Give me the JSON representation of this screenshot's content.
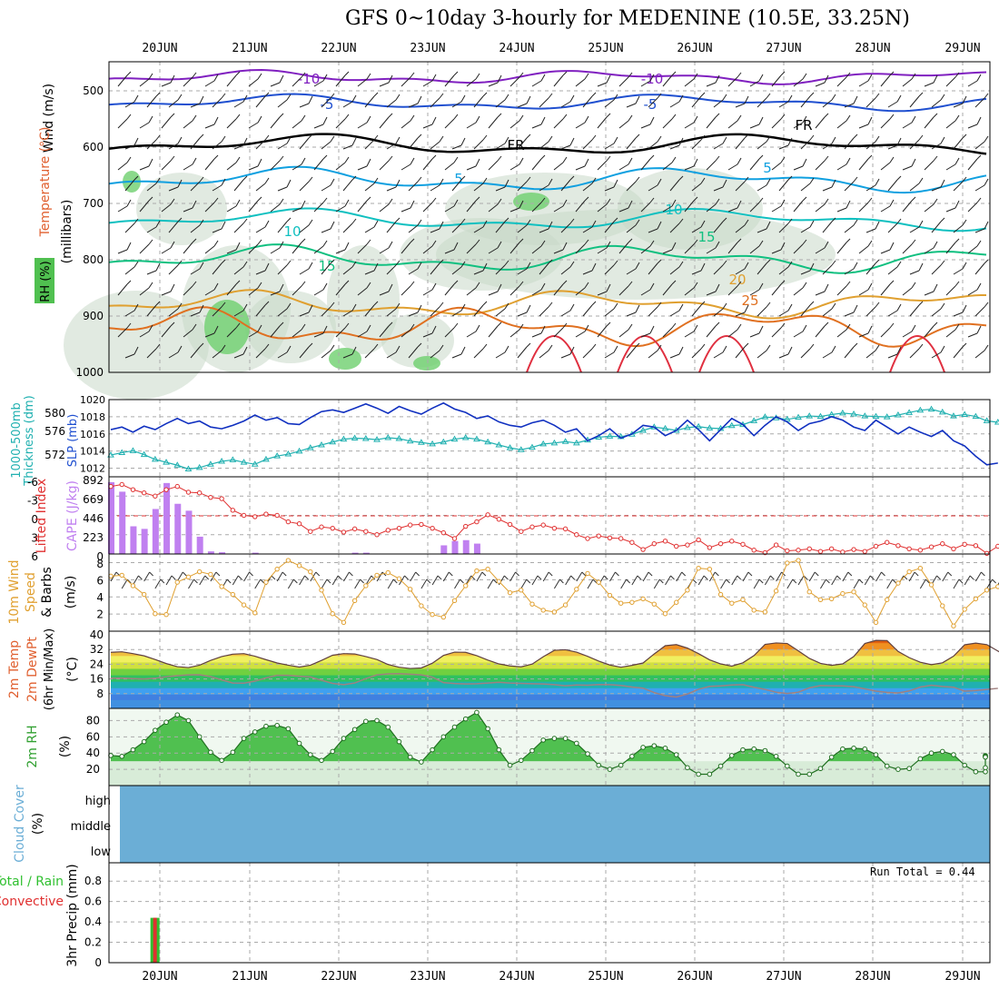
{
  "title": "GFS 0~10day 3-hourly for MEDENINE (10.5E, 33.25N)",
  "dates": [
    "20JUN",
    "21JUN",
    "22JUN",
    "23JUN",
    "24JUN",
    "25JUN",
    "26JUN",
    "27JUN",
    "28JUN",
    "29JUN"
  ],
  "colors": {
    "temp_line": "#1030c0",
    "thickness_line": "#20b0b0",
    "li_line": "#e03030",
    "cape_bar": "#c080f0",
    "wind_line": "#e0a030",
    "barb": "#202020",
    "rh_fill": "#30c030",
    "cloud": "#6baed6",
    "precip": "#e03030",
    "precip_total": "#30c030"
  },
  "panels": {
    "upper": {
      "y_ticks": [
        "500",
        "600",
        "700",
        "800",
        "900",
        "1000"
      ],
      "ylabel_wind": "Wind (m/s)",
      "ylabel_temp": "Temperature (°C)",
      "ylabel_mb": "(millibars)",
      "ylabel_rh": "RH (%)",
      "contour_labels": [
        {
          "text": "-10",
          "c": "#8020c0"
        },
        {
          "text": "-10",
          "c": "#8020c0"
        },
        {
          "text": "-5",
          "c": "#2050d0"
        },
        {
          "text": "-5",
          "c": "#2050d0"
        },
        {
          "text": "FR",
          "c": "#000000"
        },
        {
          "text": "FR",
          "c": "#000000"
        },
        {
          "text": "5",
          "c": "#10a0e0"
        },
        {
          "text": "5",
          "c": "#10a0e0"
        },
        {
          "text": "10",
          "c": "#10c0c0"
        },
        {
          "text": "10",
          "c": "#10c0c0"
        },
        {
          "text": "15",
          "c": "#10c080"
        },
        {
          "text": "15",
          "c": "#10c080"
        },
        {
          "text": "20",
          "c": "#e0a030"
        },
        {
          "text": "25",
          "c": "#e07020"
        }
      ]
    },
    "slp": {
      "left_ticks": [
        "580",
        "576",
        "572"
      ],
      "right_ticks": [
        "1020",
        "1018",
        "1016",
        "1014",
        "1012"
      ],
      "ylabel_thk": "Thickness (dm)",
      "ylabel_thk2": "1000-500mb",
      "ylabel_slp": "SLP (mb)"
    },
    "cape": {
      "li_ticks": [
        "-6",
        "-3",
        "0",
        "3",
        "6"
      ],
      "cape_ticks": [
        "892",
        "669",
        "446",
        "223",
        "0"
      ],
      "ylabel_li": "Lifted Index",
      "ylabel_cape": "CAPE (J/kg)"
    },
    "wind10": {
      "ticks": [
        "8",
        "6",
        "4",
        "2"
      ],
      "ylabel1": "10m Wind",
      "ylabel2": "Speed",
      "ylabel3": "& Barbs",
      "ylabel4": "(m/s)"
    },
    "temp2m": {
      "ticks": [
        "40",
        "32",
        "24",
        "16",
        "8"
      ],
      "ylabel1": "2m Temp",
      "ylabel2": "2m DewPt",
      "ylabel3": "(6hr Min/Max)",
      "ylabel4": "(°C)"
    },
    "rh2m": {
      "ticks": [
        "80",
        "60",
        "40",
        "20"
      ],
      "ylabel1": "2m RH",
      "ylabel2": "(%)"
    },
    "cloud": {
      "levels": [
        "high",
        "middle",
        "low"
      ],
      "ylabel1": "Cloud Cover",
      "ylabel2": "(%)"
    },
    "precip": {
      "ticks": [
        "0.8",
        "0.6",
        "0.4",
        "0.2",
        "0"
      ],
      "ylabel_total": "Total / Rain",
      "ylabel_conv": "Convective",
      "ylabel_precip": "3hr Precip (mm)",
      "run_total": "Run Total = 0.44"
    }
  },
  "chart_data": [
    {
      "type": "line",
      "name": "SLP",
      "unit": "mb",
      "ylim": [
        1011,
        1020
      ],
      "values": [
        1016.5,
        1016.8,
        1016.2,
        1016.9,
        1016.5,
        1017.2,
        1017.8,
        1017.2,
        1017.5,
        1016.8,
        1016.6,
        1017.0,
        1017.5,
        1018.2,
        1017.6,
        1017.9,
        1017.2,
        1017.1,
        1017.9,
        1018.6,
        1018.8,
        1018.5,
        1019.0,
        1019.5,
        1019.0,
        1018.4,
        1019.2,
        1018.7,
        1018.3,
        1019.0,
        1019.6,
        1018.9,
        1018.5,
        1017.8,
        1018.1,
        1017.4,
        1017.0,
        1016.8,
        1017.3,
        1017.6,
        1017.0,
        1016.2,
        1016.6,
        1015.2,
        1015.8,
        1016.6,
        1015.5,
        1016.0,
        1017.0,
        1016.8,
        1015.8,
        1016.4,
        1017.6,
        1016.5,
        1015.2,
        1016.5,
        1017.8,
        1017.1,
        1015.8,
        1017.0,
        1018.0,
        1017.4,
        1016.4,
        1017.2,
        1017.5,
        1018.0,
        1017.6,
        1016.8,
        1016.4,
        1017.6,
        1016.8,
        1016.0,
        1016.8,
        1016.2,
        1015.7,
        1016.4,
        1015.2,
        1014.6,
        1013.4,
        1012.4,
        1012.6
      ]
    },
    {
      "type": "line",
      "name": "Thickness",
      "unit": "dm",
      "ylim": [
        568,
        584
      ],
      "values": [
        572.5,
        573.0,
        573.4,
        572.6,
        571.6,
        571.0,
        570.4,
        569.6,
        569.9,
        570.6,
        571.2,
        571.5,
        571.0,
        570.6,
        571.6,
        572.3,
        572.7,
        573.3,
        574.0,
        574.6,
        575.2,
        575.8,
        576.0,
        575.9,
        575.7,
        576.1,
        575.9,
        575.4,
        575.1,
        574.8,
        575.2,
        575.8,
        576.1,
        575.8,
        575.2,
        574.6,
        574.0,
        573.6,
        574.1,
        574.8,
        575.0,
        575.3,
        575.0,
        575.6,
        576.2,
        576.4,
        576.3,
        576.8,
        577.6,
        578.3,
        578.0,
        577.6,
        578.2,
        578.4,
        578.1,
        578.0,
        578.6,
        578.8,
        579.6,
        580.4,
        580.2,
        579.9,
        580.3,
        580.6,
        580.5,
        580.9,
        581.2,
        581.0,
        580.6,
        580.5,
        580.4,
        580.8,
        581.3,
        581.8,
        582.0,
        581.4,
        580.6,
        580.9,
        580.5,
        579.6,
        579.3
      ]
    },
    {
      "type": "bar",
      "name": "CAPE",
      "unit": "J/kg",
      "ylim": [
        0,
        892
      ],
      "values": [
        830,
        720,
        320,
        290,
        520,
        820,
        580,
        500,
        200,
        30,
        20,
        0,
        0,
        15,
        0,
        0,
        0,
        0,
        0,
        0,
        0,
        0,
        15,
        15,
        0,
        0,
        0,
        0,
        0,
        0,
        100,
        150,
        160,
        120,
        0,
        0,
        0,
        0,
        0,
        0,
        0,
        0,
        0,
        0,
        0,
        0,
        0,
        0,
        0,
        0,
        0,
        0,
        0,
        0,
        0,
        0,
        0,
        0,
        0,
        0,
        0,
        0,
        0,
        0,
        0,
        0,
        0,
        0,
        0,
        0,
        0,
        0,
        0,
        0,
        0,
        0,
        0,
        0,
        0,
        0,
        0
      ]
    },
    {
      "type": "line",
      "name": "Lifted Index",
      "ylim": [
        6,
        -6
      ],
      "values": [
        -4.5,
        -4.8,
        -4.0,
        -3.5,
        -3.0,
        -4.0,
        -4.5,
        -3.6,
        -3.5,
        -2.8,
        -2.6,
        -0.8,
        0.0,
        0.2,
        -0.2,
        0.0,
        1.0,
        1.3,
        2.5,
        1.8,
        2.0,
        2.6,
        2.1,
        2.5,
        3.0,
        2.3,
        2.0,
        1.5,
        1.4,
        2.0,
        2.7,
        3.6,
        1.7,
        1.0,
        -0.1,
        0.6,
        1.4,
        2.5,
        1.8,
        1.5,
        2.0,
        2.1,
        3.0,
        3.6,
        3.2,
        3.5,
        3.6,
        4.2,
        5.3,
        4.4,
        4.0,
        4.8,
        4.6,
        3.8,
        5.0,
        4.4,
        4.0,
        4.5,
        5.4,
        5.8,
        4.6,
        5.5,
        5.4,
        5.2,
        5.6,
        5.2,
        5.7,
        5.3,
        5.6,
        4.8,
        4.2,
        4.7,
        5.2,
        5.4,
        4.9,
        4.4,
        5.2,
        4.5,
        4.7,
        5.9,
        4.8
      ]
    },
    {
      "type": "line",
      "name": "10m Wind Speed",
      "unit": "m/s",
      "ylim": [
        0,
        8
      ],
      "values": [
        6.3,
        6.4,
        5.2,
        4.2,
        2.0,
        1.9,
        5.6,
        6.2,
        6.8,
        6.5,
        5.1,
        4.2,
        3.0,
        2.1,
        5.6,
        7.1,
        8.1,
        7.5,
        6.8,
        4.7,
        2.0,
        1.0,
        3.5,
        5.2,
        6.4,
        6.7,
        6.0,
        4.8,
        2.9,
        1.9,
        1.6,
        3.5,
        5.2,
        6.9,
        7.1,
        5.7,
        4.4,
        4.7,
        3.1,
        2.4,
        2.2,
        3.0,
        4.8,
        6.6,
        5.6,
        4.1,
        3.2,
        3.3,
        3.7,
        3.1,
        2.0,
        3.3,
        4.7,
        7.2,
        7.1,
        4.2,
        3.2,
        3.6,
        2.4,
        2.2,
        4.6,
        7.8,
        8.1,
        4.5,
        3.6,
        3.7,
        4.3,
        4.5,
        3.0,
        1.0,
        3.6,
        5.5,
        6.8,
        7.2,
        5.3,
        2.9,
        0.6,
        2.5,
        3.7,
        4.7,
        5.1,
        3.9,
        2.9,
        2.2,
        1.3,
        1.3,
        0.8
      ]
    },
    {
      "type": "area",
      "name": "2m Temp",
      "unit": "°C",
      "ylim": [
        0,
        40
      ],
      "values": [
        30.5,
        30.8,
        29.8,
        28.6,
        26.6,
        24.4,
        22.7,
        22.2,
        23.5,
        26.1,
        28.2,
        29.5,
        29.8,
        28.4,
        26.5,
        24.7,
        23.5,
        22.5,
        23.5,
        26.1,
        28.9,
        29.8,
        29.6,
        28.2,
        26.6,
        23.9,
        22.4,
        21.7,
        22.0,
        24.6,
        28.8,
        30.6,
        30.5,
        28.7,
        26.3,
        24.2,
        23.1,
        22.6,
        24.1,
        28.1,
        31.6,
        31.9,
        30.6,
        28.3,
        25.7,
        23.6,
        22.4,
        23.4,
        24.7,
        29.6,
        34.1,
        34.7,
        32.8,
        29.8,
        26.4,
        24.2,
        23.0,
        24.8,
        28.7,
        34.8,
        35.6,
        35.3,
        31.3,
        27.2,
        24.5,
        23.4,
        24.2,
        28.2,
        35.3,
        37.0,
        36.9,
        31.0,
        27.6,
        25.1,
        23.8,
        24.8,
        28.4,
        34.6,
        35.5,
        34.7,
        31.2,
        27.7,
        25.4,
        24.0,
        24.4,
        27.5,
        34.5,
        36.2,
        37.2,
        31.5,
        28.9,
        26.3,
        25.2,
        27.1,
        27.8
      ]
    },
    {
      "type": "line",
      "name": "2m DewPt",
      "unit": "°C",
      "ylim": [
        0,
        40
      ],
      "values": [
        16.4,
        16.5,
        16.2,
        16.0,
        16.4,
        17.2,
        17.8,
        18.2,
        18.3,
        17.3,
        15.5,
        13.8,
        13.7,
        14.8,
        16.6,
        18.0,
        18.0,
        17.5,
        17.1,
        15.3,
        13.6,
        12.9,
        13.8,
        16.2,
        18.2,
        18.8,
        18.9,
        18.6,
        18.2,
        17.0,
        14.0,
        13.5,
        13.3,
        13.4,
        13.8,
        14.2,
        13.8,
        13.6,
        13.4,
        13.3,
        12.9,
        12.3,
        12.7,
        12.6,
        13.0,
        12.9,
        12.5,
        11.6,
        11.0,
        8.6,
        6.9,
        6.2,
        7.8,
        10.4,
        12.0,
        12.2,
        12.7,
        12.9,
        11.5,
        10.3,
        8.8,
        8.1,
        8.8,
        11.2,
        12.4,
        12.3,
        12.2,
        11.8,
        10.6,
        9.4,
        8.7,
        8.4,
        9.5,
        11.6,
        12.6,
        11.9,
        11.5,
        9.4,
        9.7,
        10.3,
        10.9
      ]
    },
    {
      "type": "area",
      "name": "2m RH",
      "unit": "%",
      "ylim": [
        0,
        100
      ],
      "values": [
        37,
        36,
        44,
        54,
        68,
        78,
        87,
        80,
        60,
        41,
        31,
        41,
        58,
        66,
        73,
        74,
        70,
        52,
        38,
        31,
        42,
        58,
        69,
        79,
        80,
        72,
        54,
        35,
        29,
        44,
        60,
        72,
        82,
        90,
        70,
        44,
        25,
        31,
        43,
        56,
        58,
        58,
        52,
        39,
        25,
        20,
        25,
        36,
        47,
        49,
        46,
        38,
        22,
        14,
        14,
        24,
        37,
        44,
        45,
        43,
        36,
        24,
        14,
        14,
        21,
        35,
        45,
        46,
        45,
        38,
        24,
        20,
        21,
        33,
        40,
        42,
        38,
        25,
        17,
        17,
        22,
        37,
        35,
        36,
        36,
        35
      ]
    },
    {
      "type": "bar",
      "name": "3hr Precip",
      "unit": "mm",
      "ylim": [
        0,
        1.0
      ],
      "values": [
        0,
        0,
        0,
        0.44,
        0,
        0,
        0,
        0,
        0,
        0,
        0,
        0,
        0,
        0,
        0,
        0,
        0,
        0,
        0,
        0,
        0,
        0,
        0,
        0,
        0,
        0,
        0,
        0,
        0,
        0,
        0,
        0,
        0,
        0,
        0,
        0,
        0,
        0,
        0,
        0,
        0,
        0,
        0,
        0,
        0,
        0,
        0,
        0,
        0,
        0,
        0,
        0,
        0,
        0,
        0,
        0,
        0,
        0,
        0,
        0,
        0,
        0,
        0,
        0,
        0,
        0,
        0,
        0,
        0,
        0,
        0,
        0,
        0,
        0,
        0,
        0,
        0,
        0,
        0,
        0,
        0
      ]
    }
  ]
}
